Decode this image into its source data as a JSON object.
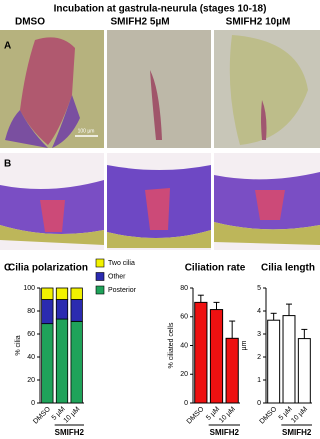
{
  "header": {
    "title": "Incubation at gastrula-neurula (stages 10-18)"
  },
  "columns": [
    "DMSO",
    "SMIFH2 5µM",
    "SMIFH2 10µM"
  ],
  "panels": {
    "a": "A",
    "b": "B",
    "c": "C"
  },
  "scale_bar": "100 µm",
  "chart_data": [
    {
      "type": "stacked-bar",
      "title": "Cilia polarization",
      "y_label": "% cilia",
      "categories": [
        "DMSO",
        "5 µM",
        "10 µM"
      ],
      "group_label": "SMIFH2",
      "series": [
        {
          "name": "Posterior",
          "color": "#1fa35a",
          "values": [
            69,
            73,
            71
          ]
        },
        {
          "name": "Other",
          "color": "#2b2bb0",
          "values": [
            21,
            17,
            19
          ]
        },
        {
          "name": "Two cilia",
          "color": "#f2f200",
          "values": [
            10,
            10,
            10
          ]
        }
      ],
      "ylim": [
        0,
        100
      ],
      "yticks": [
        0,
        20,
        40,
        60,
        80,
        100
      ]
    },
    {
      "type": "bar",
      "title": "Ciliation rate",
      "y_label": "% ciliated cells",
      "categories": [
        "DMSO",
        "5 µM",
        "10 µM"
      ],
      "group_label": "SMIFH2",
      "values": [
        70,
        65,
        45
      ],
      "errors": [
        5,
        5,
        12
      ],
      "color": "#ee1111",
      "ylim": [
        0,
        80
      ],
      "yticks": [
        0,
        20,
        40,
        60,
        80
      ]
    },
    {
      "type": "bar",
      "title": "Cilia length",
      "y_label": "µm",
      "categories": [
        "DMSO",
        "5 µM",
        "10 µM"
      ],
      "group_label": "SMIFH2",
      "values": [
        3.6,
        3.8,
        2.8
      ],
      "errors": [
        0.3,
        0.5,
        0.4
      ],
      "color": "#ffffff",
      "ylim": [
        0,
        5
      ],
      "yticks": [
        0,
        1,
        2,
        3,
        4,
        5
      ]
    }
  ]
}
